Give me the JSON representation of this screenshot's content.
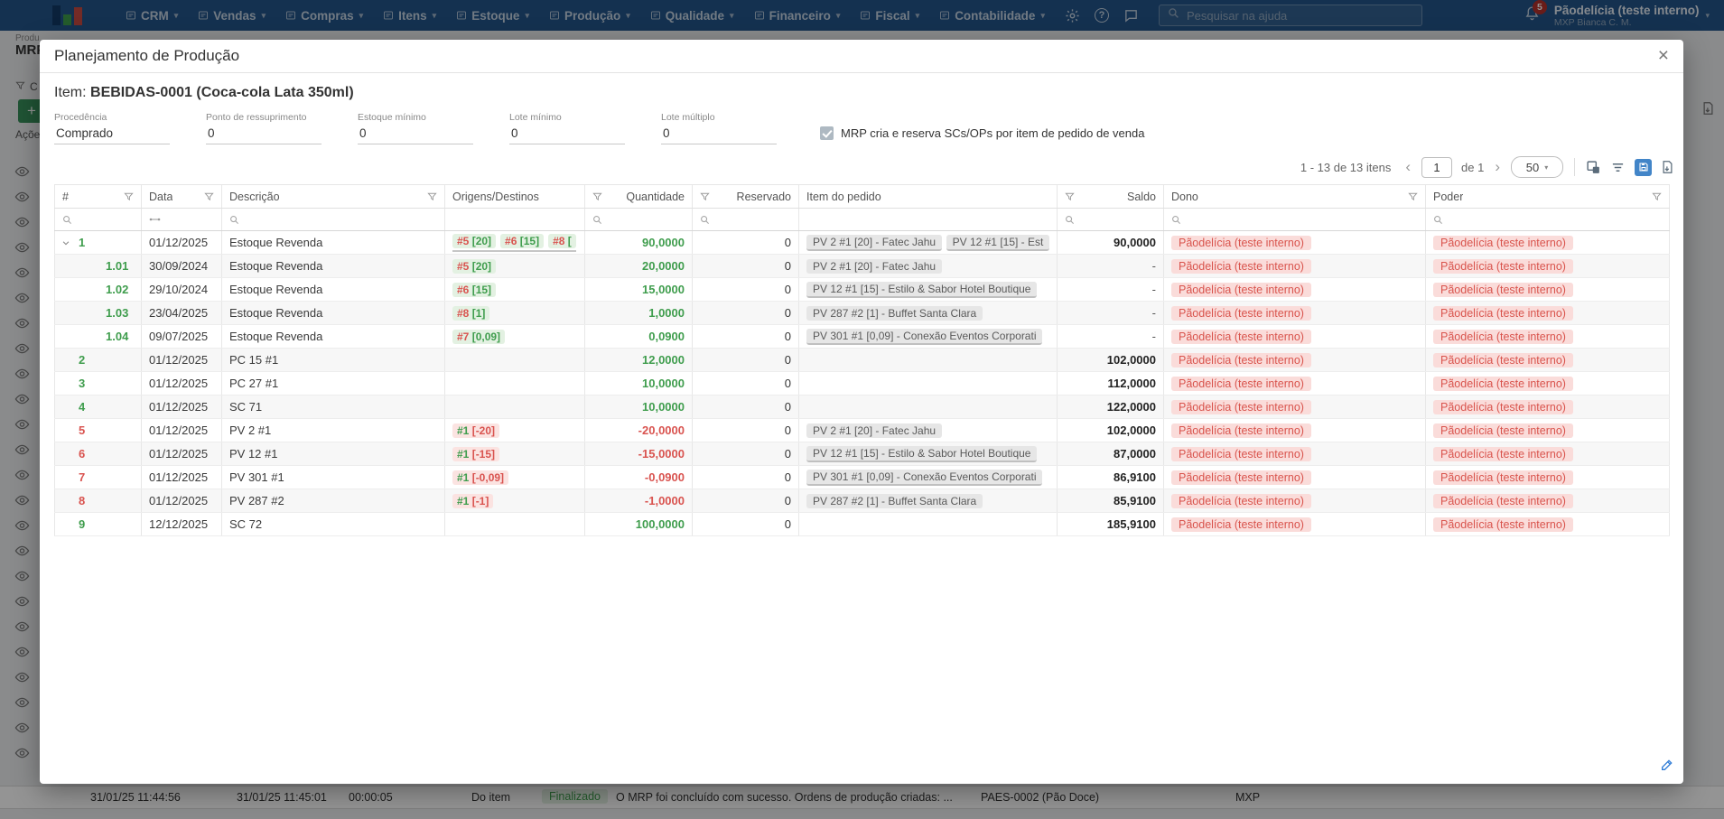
{
  "topbar": {
    "menus": [
      "CRM",
      "Vendas",
      "Compras",
      "Itens",
      "Estoque",
      "Produção",
      "Qualidade",
      "Financeiro",
      "Fiscal",
      "Contabilidade"
    ],
    "search_placeholder": "Pesquisar na ajuda",
    "notification_count": "5",
    "user_name": "Pãodelícia (teste interno)",
    "user_subtitle": "MXP Bianca C. M."
  },
  "background": {
    "breadcrumb_fragment": "Produ",
    "page_title_fragment": "MRP",
    "filter_fragment": "C",
    "actions_fragment": "Açõe",
    "eye_icon_count": 24,
    "log_row": {
      "started_at": "31/01/25 11:44:56",
      "finished_at": "31/01/25 11:45:01",
      "duration": "00:00:05",
      "scope": "Do item",
      "status": "Finalizado",
      "message": "O MRP foi concluído com sucesso. Ordens de produção criadas: ...",
      "item": "PAES-0002 (Pão Doce)",
      "company": "MXP"
    }
  },
  "modal": {
    "title": "Planejamento de Produção",
    "item_label": "Item:",
    "item_value": "BEBIDAS-0001 (Coca-cola Lata 350ml)",
    "fields": [
      {
        "label": "Procedência",
        "value": "Comprado"
      },
      {
        "label": "Ponto de ressuprimento",
        "value": "0"
      },
      {
        "label": "Estoque mínimo",
        "value": "0"
      },
      {
        "label": "Lote mínimo",
        "value": "0"
      },
      {
        "label": "Lote múltiplo",
        "value": "0"
      }
    ],
    "checkbox": {
      "checked": true,
      "label": "MRP cria e reserva SCs/OPs por item de pedido de venda"
    },
    "pagination": {
      "range_text": "1 - 13 de 13 itens",
      "page": "1",
      "pages_text": "de 1",
      "page_size": "50"
    },
    "table": {
      "columns": [
        "#",
        "Data",
        "Descrição",
        "Origens/Destinos",
        "Quantidade",
        "Reservado",
        "Item do pedido",
        "Saldo",
        "Dono",
        "Poder"
      ],
      "rows": [
        {
          "num": "1",
          "tone": "green",
          "level": 0,
          "expand": true,
          "date": "01/12/2025",
          "desc": "Estoque Revenda",
          "origins": [
            {
              "ref": "#5",
              "qty": "[20]"
            },
            {
              "ref": "#6",
              "qty": "[15]"
            },
            {
              "ref": "#8",
              "qty": "["
            }
          ],
          "origins_underline": true,
          "qty": "90,0000",
          "reserved": "0",
          "orders": [
            {
              "text": "PV 2 #1 [20] - Fatec Jahu",
              "underline": true
            },
            {
              "text": "PV 12 #1 [15] - Est",
              "underline": true
            }
          ],
          "saldo": "90,0000",
          "dono": "Pãodelícia (teste interno)",
          "poder": "Pãodelícia (teste interno)"
        },
        {
          "num": "1.01",
          "tone": "green",
          "level": 1,
          "date": "30/09/2024",
          "desc": "Estoque Revenda",
          "origins": [
            {
              "ref": "#5",
              "qty": "[20]"
            }
          ],
          "qty": "20,0000",
          "reserved": "0",
          "orders": [
            {
              "text": "PV 2 #1 [20] - Fatec Jahu"
            }
          ],
          "saldo": "-",
          "dono": "Pãodelícia (teste interno)",
          "poder": "Pãodelícia (teste interno)"
        },
        {
          "num": "1.02",
          "tone": "green",
          "level": 1,
          "date": "29/10/2024",
          "desc": "Estoque Revenda",
          "origins": [
            {
              "ref": "#6",
              "qty": "[15]"
            }
          ],
          "qty": "15,0000",
          "reserved": "0",
          "orders": [
            {
              "text": "PV 12 #1 [15] - Estilo & Sabor Hotel Boutique",
              "underline": true
            }
          ],
          "saldo": "-",
          "dono": "Pãodelícia (teste interno)",
          "poder": "Pãodelícia (teste interno)"
        },
        {
          "num": "1.03",
          "tone": "green",
          "level": 1,
          "date": "23/04/2025",
          "desc": "Estoque Revenda",
          "origins": [
            {
              "ref": "#8",
              "qty": "[1]"
            }
          ],
          "qty": "1,0000",
          "reserved": "0",
          "orders": [
            {
              "text": "PV 287 #2 [1] - Buffet Santa Clara"
            }
          ],
          "saldo": "-",
          "dono": "Pãodelícia (teste interno)",
          "poder": "Pãodelícia (teste interno)"
        },
        {
          "num": "1.04",
          "tone": "green",
          "level": 1,
          "date": "09/07/2025",
          "desc": "Estoque Revenda",
          "origins": [
            {
              "ref": "#7",
              "qty": "[0,09]"
            }
          ],
          "qty": "0,0900",
          "reserved": "0",
          "orders": [
            {
              "text": "PV 301 #1 [0,09] - Conexão Eventos Corporati",
              "underline": true
            }
          ],
          "saldo": "-",
          "dono": "Pãodelícia (teste interno)",
          "poder": "Pãodelícia (teste interno)"
        },
        {
          "num": "2",
          "tone": "green",
          "level": 0,
          "date": "01/12/2025",
          "desc": "PC 15 #1",
          "origins": [],
          "qty": "12,0000",
          "reserved": "0",
          "orders": [],
          "saldo": "102,0000",
          "dono": "Pãodelícia (teste interno)",
          "poder": "Pãodelícia (teste interno)"
        },
        {
          "num": "3",
          "tone": "green",
          "level": 0,
          "date": "01/12/2025",
          "desc": "PC 27 #1",
          "origins": [],
          "qty": "10,0000",
          "reserved": "0",
          "orders": [],
          "saldo": "112,0000",
          "dono": "Pãodelícia (teste interno)",
          "poder": "Pãodelícia (teste interno)"
        },
        {
          "num": "4",
          "tone": "green",
          "level": 0,
          "date": "01/12/2025",
          "desc": "SC 71",
          "origins": [],
          "qty": "10,0000",
          "reserved": "0",
          "orders": [],
          "saldo": "122,0000",
          "dono": "Pãodelícia (teste interno)",
          "poder": "Pãodelícia (teste interno)"
        },
        {
          "num": "5",
          "tone": "red",
          "level": 0,
          "date": "01/12/2025",
          "desc": "PV 2 #1",
          "origins": [
            {
              "ref": "#1",
              "qty": "[-20]"
            }
          ],
          "qty": "-20,0000",
          "reserved": "0",
          "orders": [
            {
              "text": "PV 2 #1 [20] - Fatec Jahu"
            }
          ],
          "saldo": "102,0000",
          "dono": "Pãodelícia (teste interno)",
          "poder": "Pãodelícia (teste interno)"
        },
        {
          "num": "6",
          "tone": "red",
          "level": 0,
          "date": "01/12/2025",
          "desc": "PV 12 #1",
          "origins": [
            {
              "ref": "#1",
              "qty": "[-15]"
            }
          ],
          "qty": "-15,0000",
          "reserved": "0",
          "orders": [
            {
              "text": "PV 12 #1 [15] - Estilo & Sabor Hotel Boutique",
              "underline": true
            }
          ],
          "saldo": "87,0000",
          "dono": "Pãodelícia (teste interno)",
          "poder": "Pãodelícia (teste interno)"
        },
        {
          "num": "7",
          "tone": "red",
          "level": 0,
          "date": "01/12/2025",
          "desc": "PV 301 #1",
          "origins": [
            {
              "ref": "#1",
              "qty": "[-0,09]"
            }
          ],
          "qty": "-0,0900",
          "reserved": "0",
          "orders": [
            {
              "text": "PV 301 #1 [0,09] - Conexão Eventos Corporati",
              "underline": true
            }
          ],
          "saldo": "86,9100",
          "dono": "Pãodelícia (teste interno)",
          "poder": "Pãodelícia (teste interno)"
        },
        {
          "num": "8",
          "tone": "red",
          "level": 0,
          "date": "01/12/2025",
          "desc": "PV 287 #2",
          "origins": [
            {
              "ref": "#1",
              "qty": "[-1]"
            }
          ],
          "qty": "-1,0000",
          "reserved": "0",
          "orders": [
            {
              "text": "PV 287 #2 [1] - Buffet Santa Clara"
            }
          ],
          "saldo": "85,9100",
          "dono": "Pãodelícia (teste interno)",
          "poder": "Pãodelícia (teste interno)"
        },
        {
          "num": "9",
          "tone": "green",
          "level": 0,
          "date": "12/12/2025",
          "desc": "SC 72",
          "origins": [],
          "qty": "100,0000",
          "reserved": "0",
          "orders": [],
          "saldo": "185,9100",
          "dono": "Pãodelícia (teste interno)",
          "poder": "Pãodelícia (teste interno)"
        }
      ]
    }
  },
  "colors": {
    "topbar_bg": "#24558a",
    "accent_green": "#3f9d4d",
    "accent_red": "#d9534f",
    "chip_green_bg": "#e3f1e2",
    "chip_red_bg": "#fbe3e1",
    "owner_chip_bg": "#fadcda",
    "save_icon_blue": "#4285c8",
    "status_chip_bg": "#e3f2e4"
  }
}
